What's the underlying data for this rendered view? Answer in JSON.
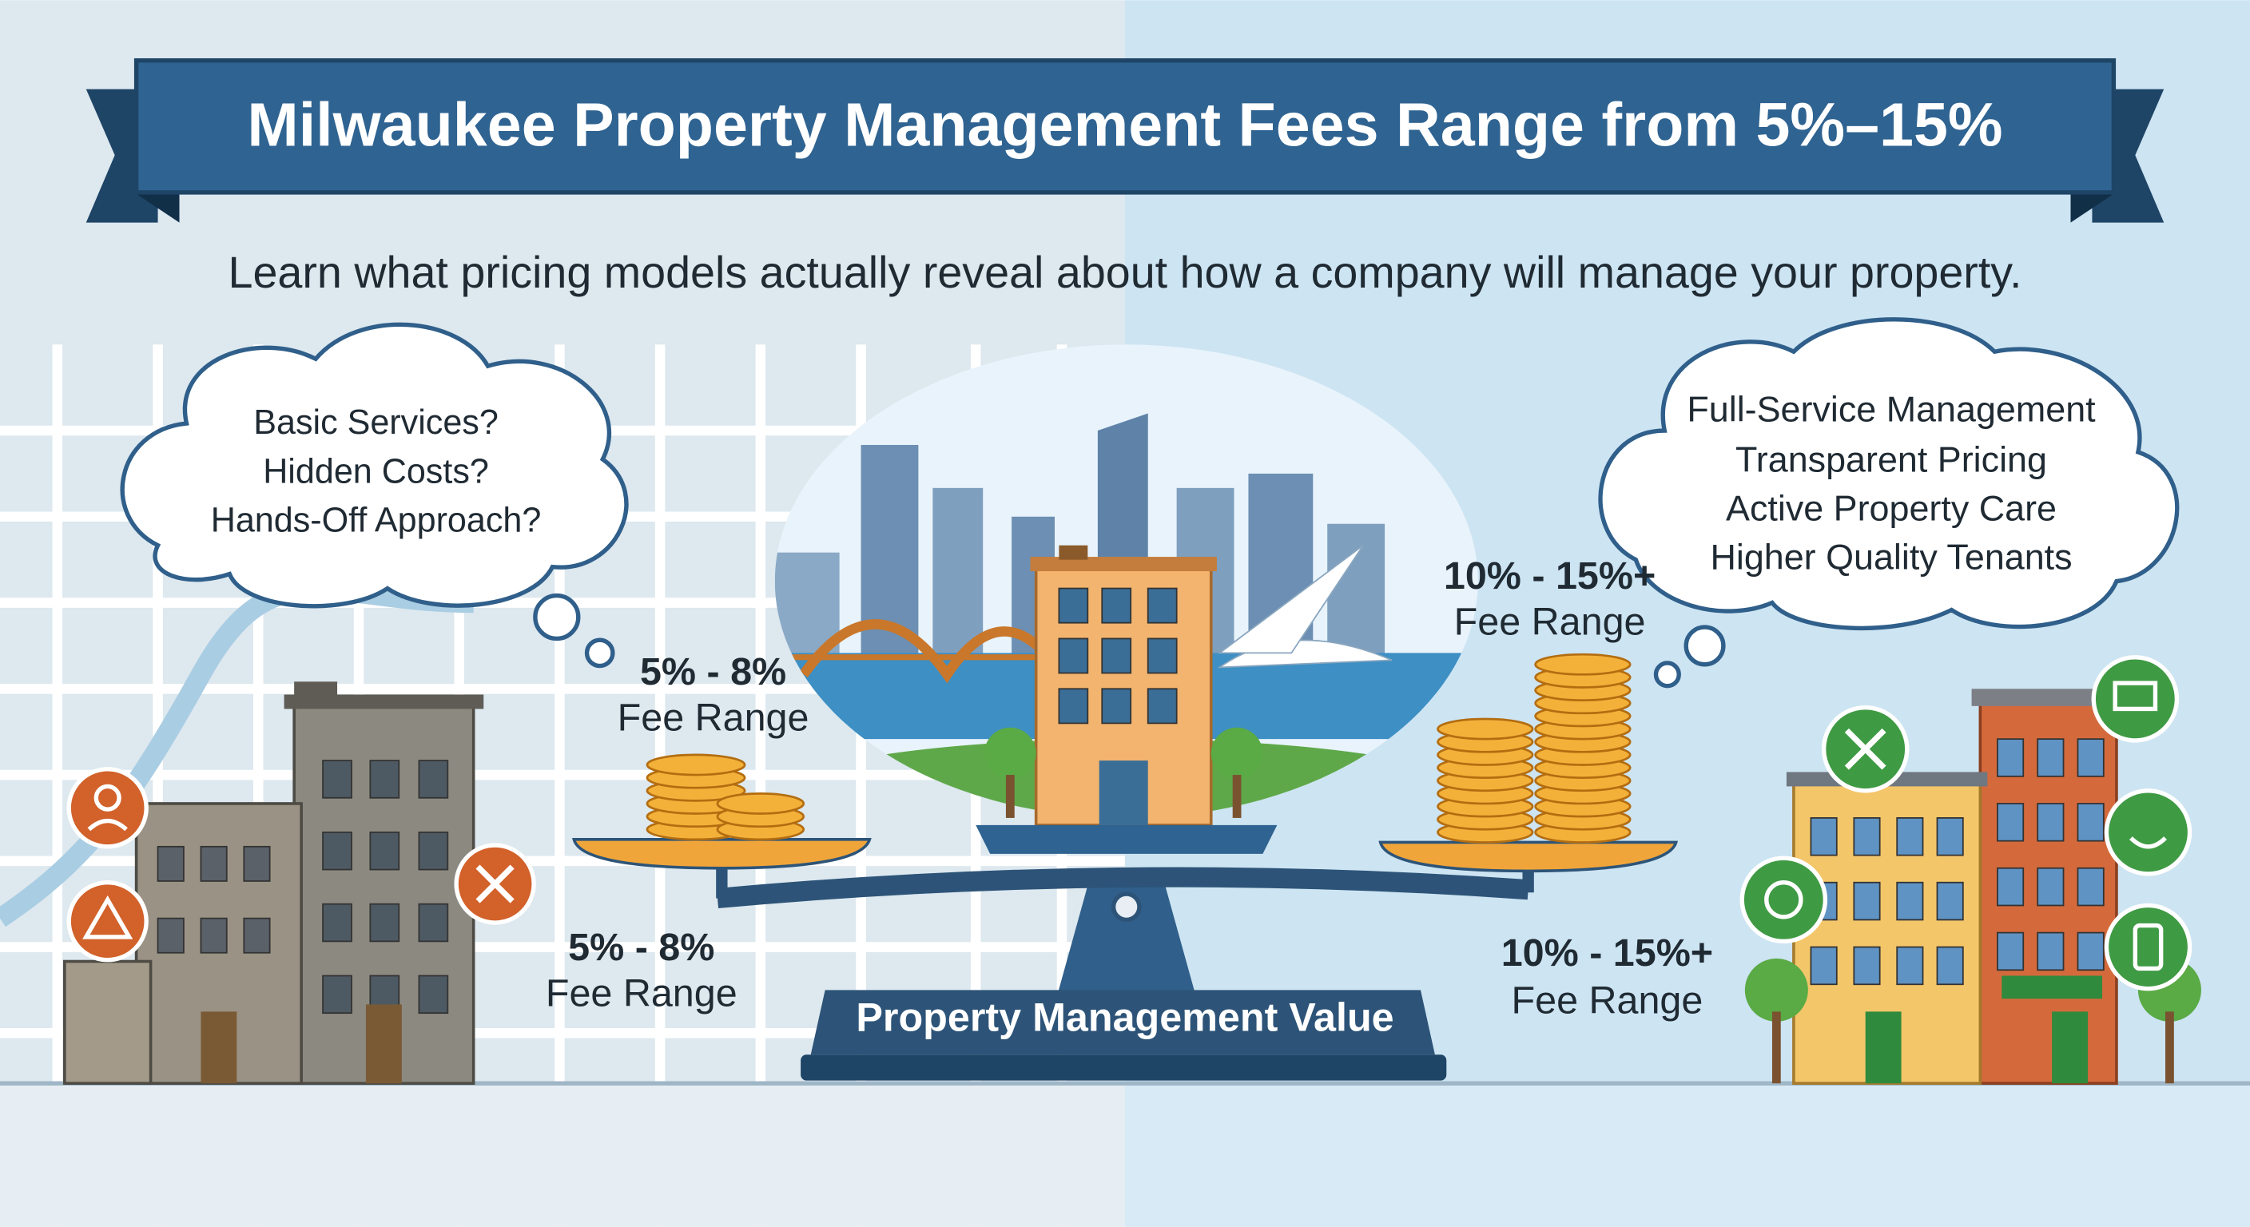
{
  "header": {
    "title": "Milwaukee Property Management Fees Range from 5%–15%",
    "subtitle": "Learn what pricing models actually reveal about how a company will manage your property."
  },
  "left_bubble": {
    "lines": [
      "Basic Services?",
      "Hidden Costs?",
      "Hands-Off Approach?"
    ]
  },
  "right_bubble": {
    "lines": [
      "Full-Service Management",
      "Transparent Pricing",
      "Active Property Care",
      "Higher Quality Tenants"
    ]
  },
  "low_fee": {
    "pan_label": {
      "range": "5% - 8%",
      "caption": "Fee Range"
    },
    "ground_label": {
      "range": "5% - 8%",
      "caption": "Fee Range"
    }
  },
  "high_fee": {
    "pan_label": {
      "range": "10% - 15%+",
      "caption": "Fee Range"
    },
    "ground_label": {
      "range": "10% - 15%+",
      "caption": "Fee Range"
    }
  },
  "scale": {
    "label": "Property Management Value"
  }
}
